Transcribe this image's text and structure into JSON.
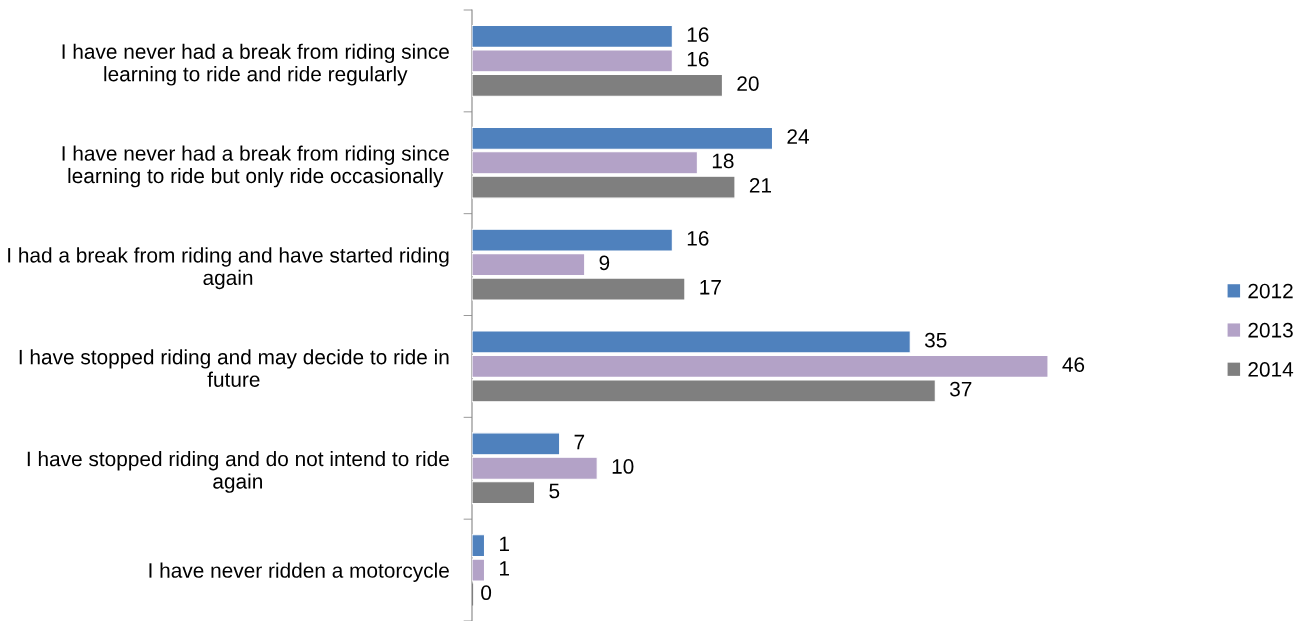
{
  "chart_data": {
    "type": "bar",
    "orientation": "horizontal",
    "categories": [
      "I have never had a break from riding since\nlearning to ride and ride regularly",
      "I have never had a break from riding since\nlearning to ride but only ride occasionally",
      "I had a break from riding and have started riding\nagain",
      "I have stopped riding and may decide to ride in\nfuture",
      "I have stopped riding and do not intend to ride\nagain",
      "I have never ridden a motorcycle"
    ],
    "series": [
      {
        "name": "2012",
        "color": "#4f81bd",
        "values": [
          16,
          24,
          16,
          35,
          7,
          1
        ]
      },
      {
        "name": "2013",
        "color": "#b3a2c7",
        "values": [
          16,
          18,
          9,
          46,
          10,
          1
        ]
      },
      {
        "name": "2014",
        "color": "#7f7f7f",
        "values": [
          20,
          21,
          17,
          37,
          5,
          0
        ]
      }
    ],
    "data_labels": true,
    "legend": "right",
    "grid": false
  }
}
